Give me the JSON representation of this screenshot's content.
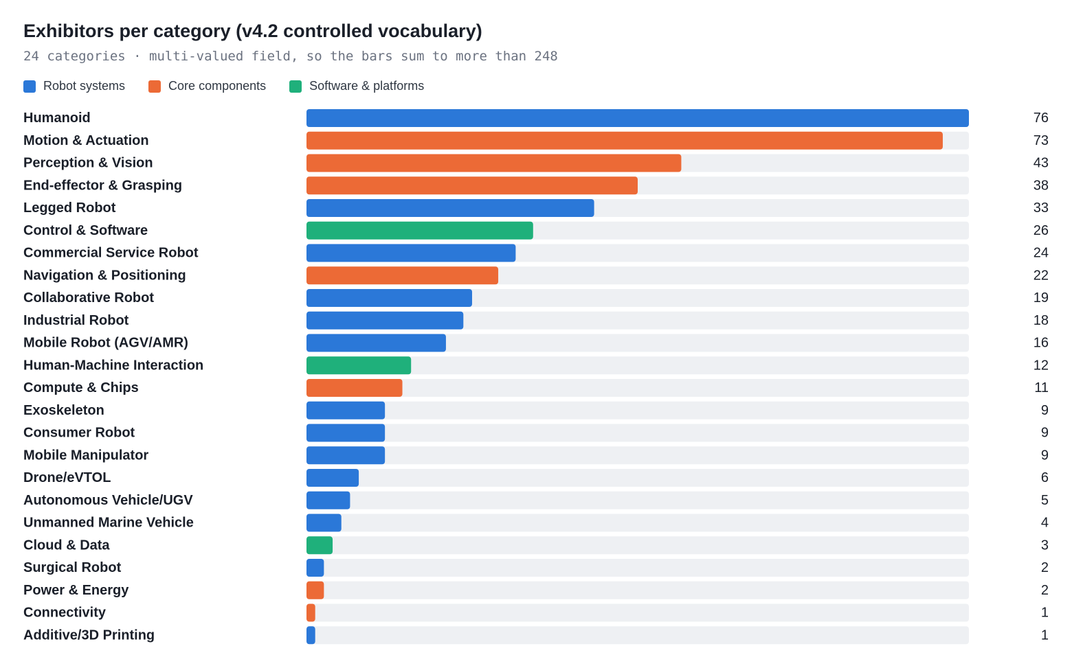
{
  "chart_data": {
    "type": "bar",
    "orientation": "horizontal",
    "title": "Exhibitors per category (v4.2 controlled vocabulary)",
    "subtitle": "24 categories · multi-valued field, so the bars sum to more than 248",
    "xlim": [
      0,
      76
    ],
    "grid": false,
    "legend_position": "top-left",
    "groups": [
      {
        "key": "robot",
        "name": "Robot systems",
        "color": "#2b78d8"
      },
      {
        "key": "core",
        "name": "Core components",
        "color": "#ec6a36"
      },
      {
        "key": "software",
        "name": "Software & platforms",
        "color": "#1fb07b"
      }
    ],
    "track_color": "#eef0f3",
    "categories": [
      {
        "label": "Humanoid",
        "value": 76,
        "group": "robot"
      },
      {
        "label": "Motion & Actuation",
        "value": 73,
        "group": "core"
      },
      {
        "label": "Perception & Vision",
        "value": 43,
        "group": "core"
      },
      {
        "label": "End-effector & Grasping",
        "value": 38,
        "group": "core"
      },
      {
        "label": "Legged Robot",
        "value": 33,
        "group": "robot"
      },
      {
        "label": "Control & Software",
        "value": 26,
        "group": "software"
      },
      {
        "label": "Commercial Service Robot",
        "value": 24,
        "group": "robot"
      },
      {
        "label": "Navigation & Positioning",
        "value": 22,
        "group": "core"
      },
      {
        "label": "Collaborative Robot",
        "value": 19,
        "group": "robot"
      },
      {
        "label": "Industrial Robot",
        "value": 18,
        "group": "robot"
      },
      {
        "label": "Mobile Robot (AGV/AMR)",
        "value": 16,
        "group": "robot"
      },
      {
        "label": "Human-Machine Interaction",
        "value": 12,
        "group": "software"
      },
      {
        "label": "Compute & Chips",
        "value": 11,
        "group": "core"
      },
      {
        "label": "Exoskeleton",
        "value": 9,
        "group": "robot"
      },
      {
        "label": "Consumer Robot",
        "value": 9,
        "group": "robot"
      },
      {
        "label": "Mobile Manipulator",
        "value": 9,
        "group": "robot"
      },
      {
        "label": "Drone/eVTOL",
        "value": 6,
        "group": "robot"
      },
      {
        "label": "Autonomous Vehicle/UGV",
        "value": 5,
        "group": "robot"
      },
      {
        "label": "Unmanned Marine Vehicle",
        "value": 4,
        "group": "robot"
      },
      {
        "label": "Cloud & Data",
        "value": 3,
        "group": "software"
      },
      {
        "label": "Surgical Robot",
        "value": 2,
        "group": "robot"
      },
      {
        "label": "Power & Energy",
        "value": 2,
        "group": "core"
      },
      {
        "label": "Connectivity",
        "value": 1,
        "group": "core"
      },
      {
        "label": "Additive/3D Printing",
        "value": 1,
        "group": "robot"
      }
    ]
  }
}
